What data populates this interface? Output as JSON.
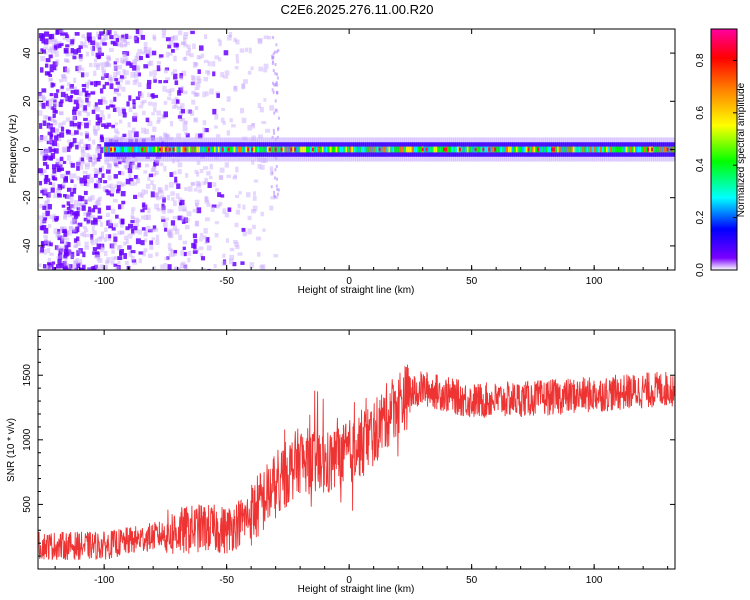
{
  "title": "C2E6.2025.276.11.00.R20",
  "chart_data": [
    {
      "type": "heatmap",
      "name": "spectrogram",
      "xlabel": "Height of straight line (km)",
      "ylabel": "Frequency (Hz)",
      "xlim": [
        -127,
        133
      ],
      "ylim": [
        -50,
        50
      ],
      "xticks": [
        -100,
        -50,
        0,
        50,
        100
      ],
      "xtick_labels": [
        "-100",
        "-50",
        "0",
        "50",
        "100"
      ],
      "yticks": [
        -40,
        -20,
        0,
        20,
        40
      ],
      "ytick_labels": [
        "-40",
        "-20",
        "0",
        "20",
        "40"
      ],
      "colorbar": {
        "label": "Normalized spectral amplitude",
        "range": [
          0,
          0.92
        ],
        "ticks": [
          0.0,
          0.2,
          0.4,
          0.6,
          0.8
        ],
        "tick_labels": [
          "0.0",
          "0.2",
          "0.4",
          "0.6",
          "0.8"
        ],
        "colors": [
          "#ffffff",
          "#7a00ff",
          "#0000ff",
          "#00ffff",
          "#00ff00",
          "#ffff00",
          "#ff8000",
          "#ff0000",
          "#ff00a0"
        ]
      },
      "description_values": {
        "band_center_hz": 0,
        "band_halfwidth_hz": 3,
        "noise_region_km": [
          -127,
          -30
        ]
      }
    },
    {
      "type": "line",
      "name": "snr",
      "xlabel": "Height of straight line (km)",
      "ylabel": "SNR (10 * v/v)",
      "xlim": [
        -127,
        133
      ],
      "ylim": [
        0,
        1850
      ],
      "xticks": [
        -100,
        -50,
        0,
        50,
        100
      ],
      "xtick_labels": [
        "-100",
        "-50",
        "0",
        "50",
        "100"
      ],
      "yticks": [
        500,
        1000,
        1500
      ],
      "ytick_labels": [
        "500",
        "1000",
        "1500"
      ],
      "color": "#ee3333",
      "trend": {
        "x": [
          -127,
          -100,
          -75,
          -60,
          -50,
          -40,
          -30,
          -20,
          -10,
          0,
          10,
          20,
          30,
          50,
          75,
          100,
          133
        ],
        "y": [
          180,
          180,
          270,
          320,
          300,
          420,
          650,
          850,
          800,
          900,
          1050,
          1300,
          1400,
          1300,
          1320,
          1350,
          1400
        ]
      }
    }
  ]
}
